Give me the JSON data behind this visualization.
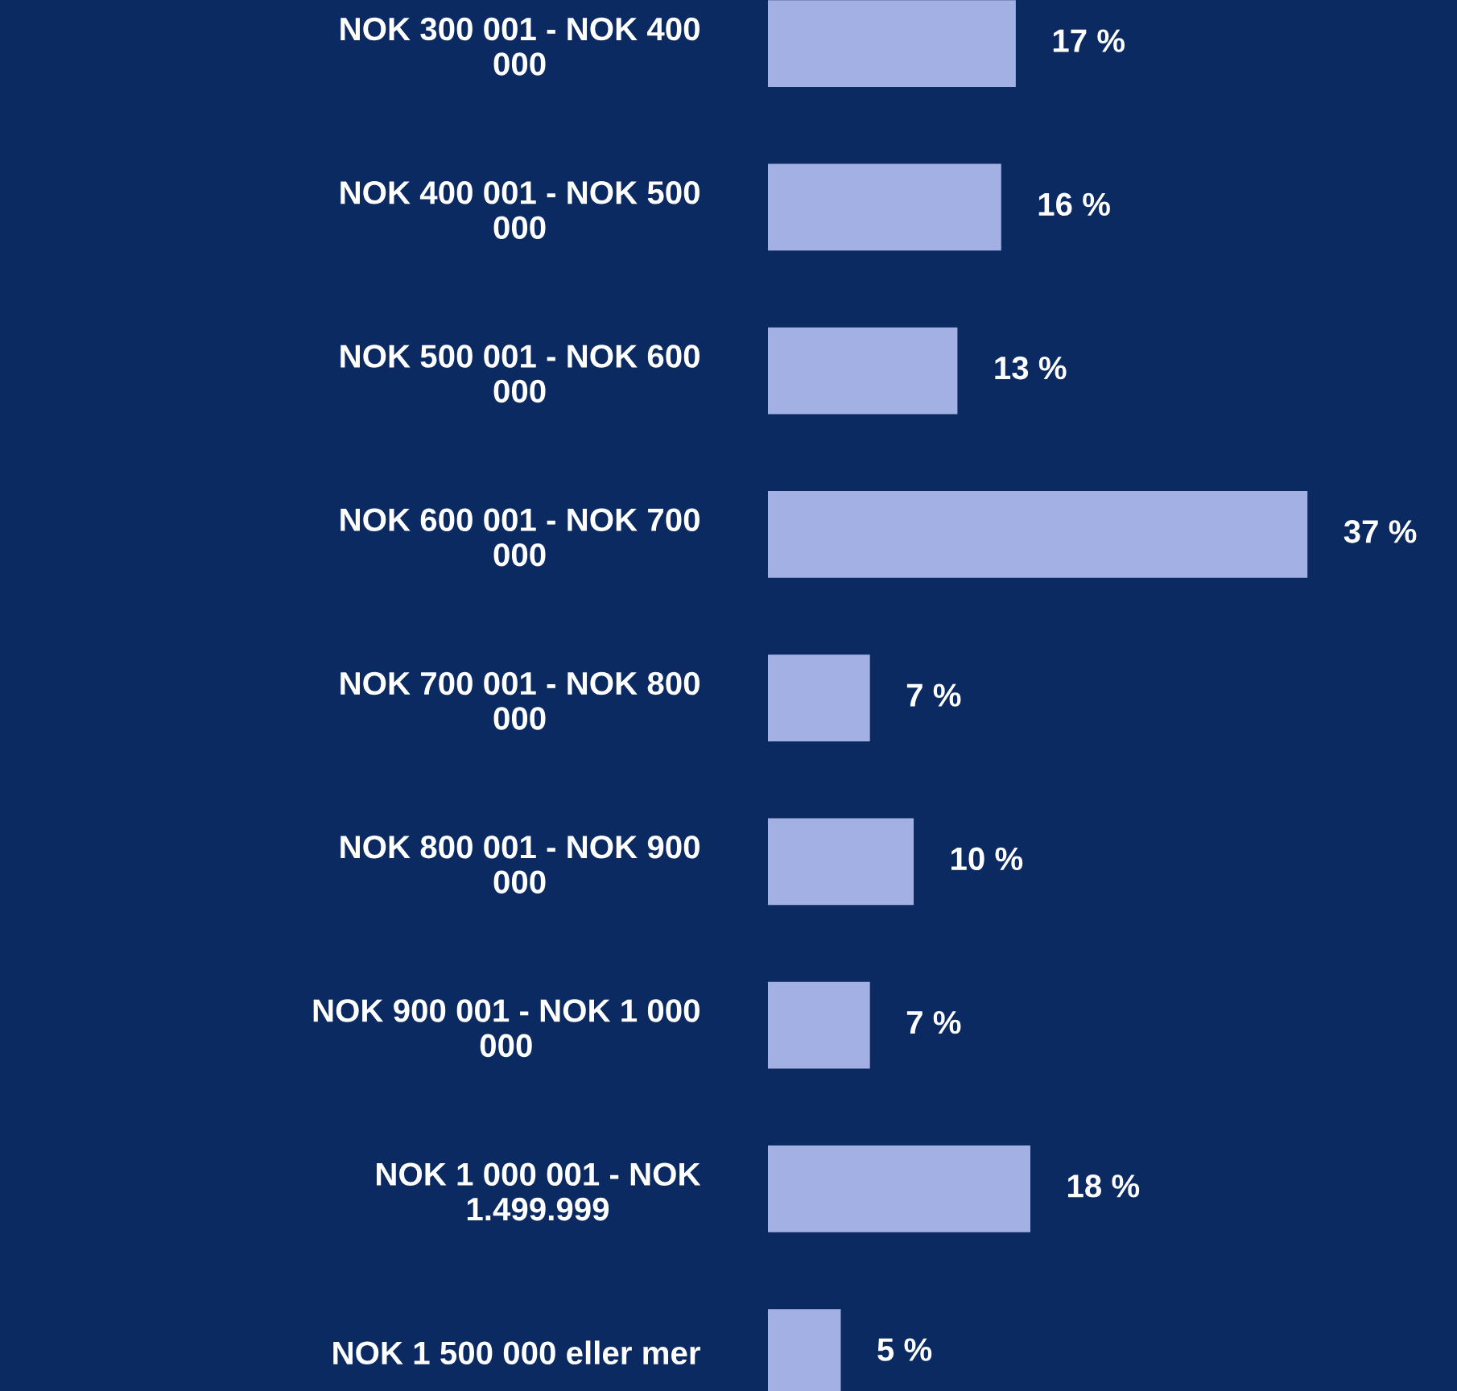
{
  "chart_data": {
    "type": "bar",
    "orientation": "horizontal",
    "categories": [
      "NOK 300 001 - NOK 400 000",
      "NOK 400 001 - NOK 500 000",
      "NOK 500 001 - NOK 600 000",
      "NOK 600 001 - NOK 700 000",
      "NOK 700 001 - NOK 800 000",
      "NOK 800 001 - NOK 900 000",
      "NOK 900 001 - NOK 1 000 000",
      "NOK 1 000 001 - NOK 1.499.999",
      "NOK 1 500 000 eller mer"
    ],
    "values": [
      17,
      16,
      13,
      37,
      7,
      10,
      7,
      18,
      5
    ],
    "value_labels": [
      "17 %",
      "16 %",
      "13 %",
      "37 %",
      "7 %",
      "10 %",
      "7 %",
      "18 %",
      "5 %"
    ],
    "color": "#a3b0e3",
    "grid": false,
    "legend": false
  }
}
